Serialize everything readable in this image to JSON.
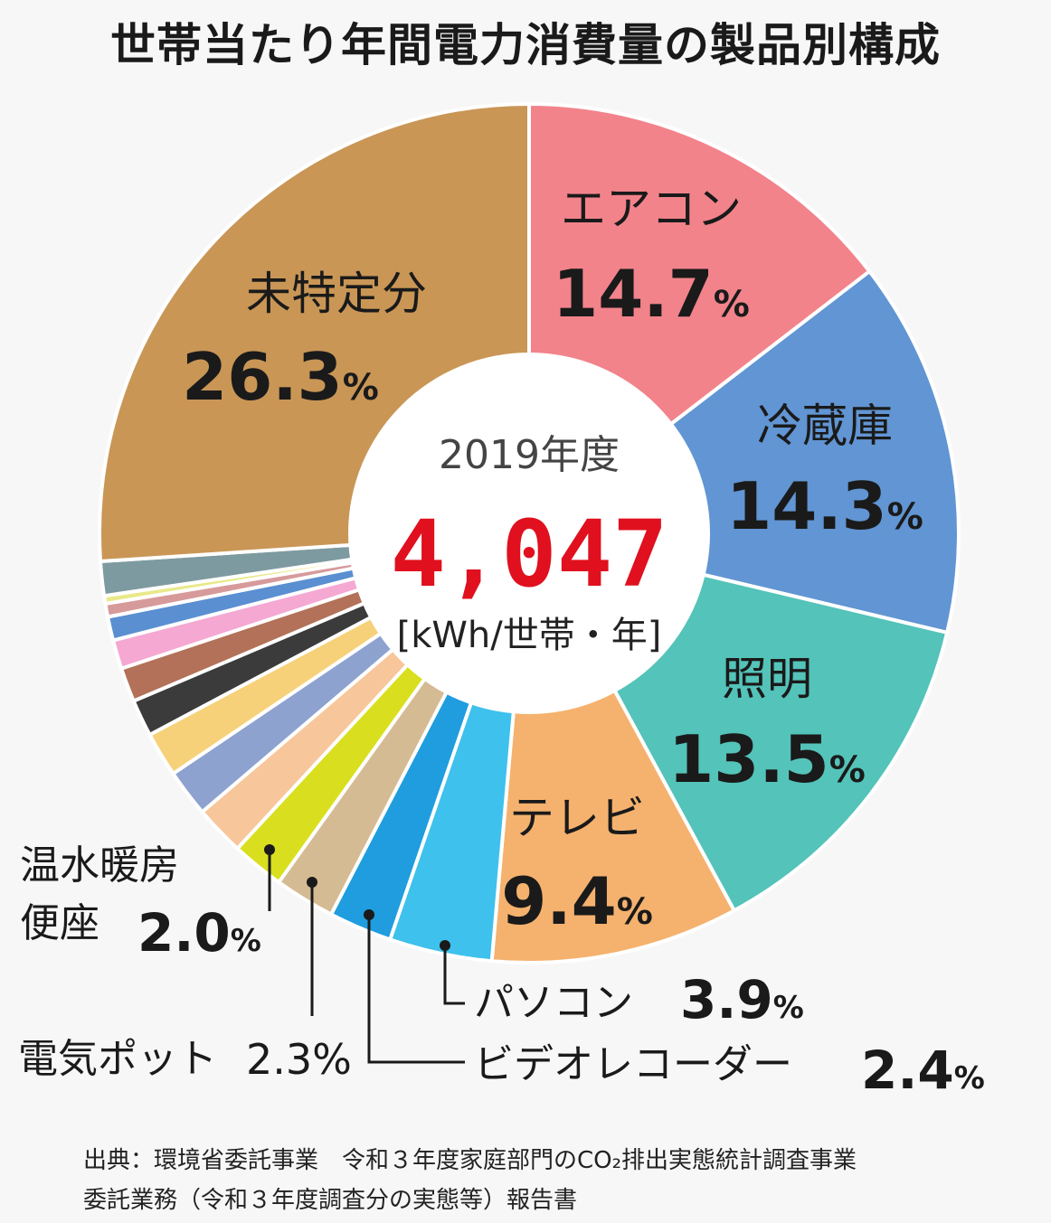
{
  "title": "世帯当たり年間電力消費量の製品別構成",
  "center": {
    "year": "2019年度",
    "value": "4,047",
    "unit": "[kWh/世帯・年]"
  },
  "chart_data": {
    "type": "pie",
    "center_total": 4047,
    "unit": "kWh/世帯・年",
    "slices": [
      {
        "label": "エアコン",
        "value": 14.7,
        "display": "14.7",
        "color": "#f2838b"
      },
      {
        "label": "冷蔵庫",
        "value": 14.3,
        "display": "14.3",
        "color": "#6195d3"
      },
      {
        "label": "照明",
        "value": 13.5,
        "display": "13.5",
        "color": "#54c3b9"
      },
      {
        "label": "テレビ",
        "value": 9.4,
        "display": "9.4",
        "color": "#f5b26e"
      },
      {
        "label": "パソコン",
        "value": 3.9,
        "display": "3.9",
        "color": "#3ec1ec"
      },
      {
        "label": "ビデオレコーダー",
        "value": 2.4,
        "display": "2.4",
        "color": "#1f9ddf"
      },
      {
        "label": "電気ポット",
        "value": 2.3,
        "display": "2.3",
        "color": "#d5bb94"
      },
      {
        "label": "温水暖房便座",
        "value": 2.0,
        "display": "2.0",
        "color": "#d9df1e"
      },
      {
        "label": "",
        "value": 1.9,
        "color": "#f7c69a"
      },
      {
        "label": "",
        "value": 1.8,
        "color": "#8ea2d0"
      },
      {
        "label": "",
        "value": 1.7,
        "color": "#f6d17a"
      },
      {
        "label": "",
        "value": 1.4,
        "color": "#3b3b3b"
      },
      {
        "label": "",
        "value": 1.3,
        "color": "#b27158"
      },
      {
        "label": "",
        "value": 1.1,
        "color": "#f4a8d2"
      },
      {
        "label": "",
        "value": 0.9,
        "color": "#5a8fd1"
      },
      {
        "label": "",
        "value": 0.5,
        "color": "#d79a9b"
      },
      {
        "label": "",
        "value": 0.3,
        "color": "#e9e98a"
      },
      {
        "label": "",
        "value": 1.3,
        "color": "#7e9aa1"
      },
      {
        "label": "未特定分",
        "value": 26.3,
        "display": "26.3",
        "color": "#c99656"
      }
    ]
  },
  "source": {
    "line1": "出典：環境省委託事業　令和３年度家庭部門のCO₂排出実態統計調査事業",
    "line2": "委託業務（令和３年度調査分の実態等）報告書"
  }
}
